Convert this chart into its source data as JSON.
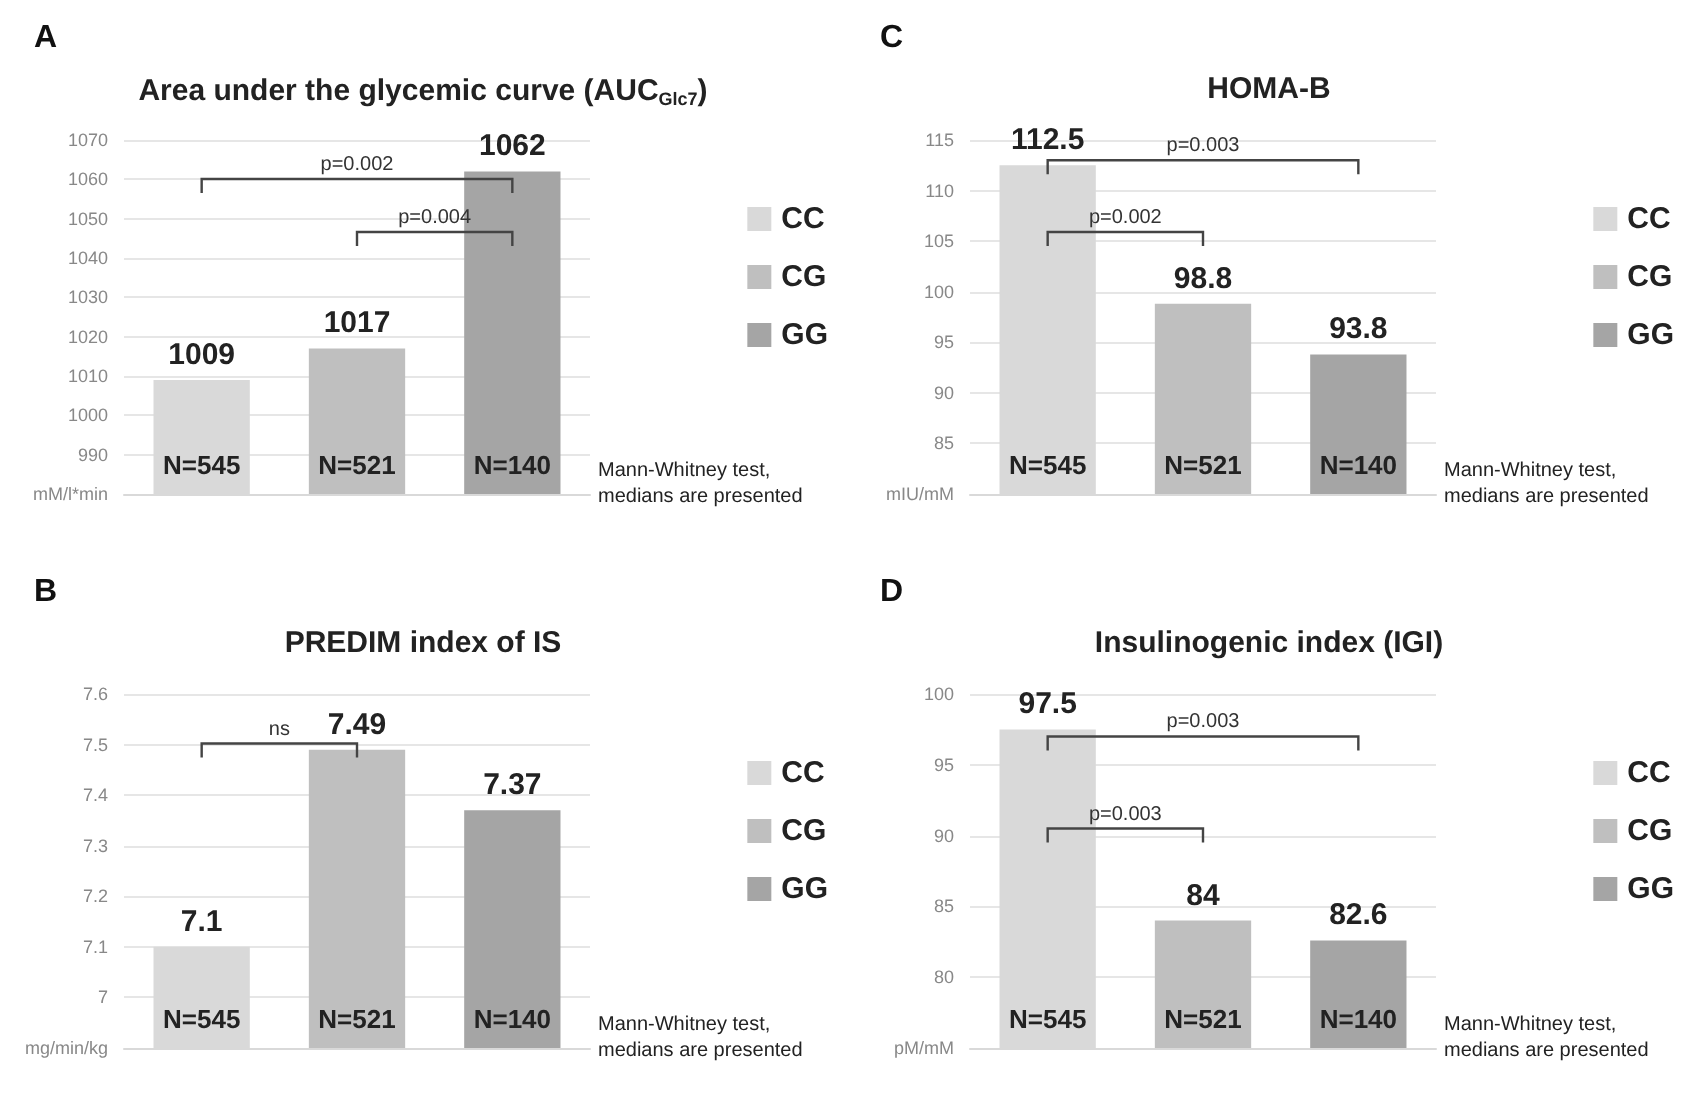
{
  "chart_data": [
    {
      "type": "bar",
      "subtitle": "A",
      "title": "Area under the glycemic curve (AUC$_{Glc7}$)",
      "categories": [
        null,
        null,
        null
      ],
      "series": [
        {
          "name": "CC",
          "color": "#d9d9d9",
          "values": [
            1009,
            null,
            null
          ]
        },
        {
          "name": "CG",
          "color": "#bfbfbf",
          "values": [
            null,
            1017,
            null
          ]
        },
        {
          "name": "GG",
          "color": "#a5a5a5",
          "values": [
            null,
            null,
            1062
          ]
        }
      ],
      "ylim": [
        980,
        1070
      ],
      "yticks": [
        {
          "value": 980,
          "label": "mM/l*min"
        },
        990,
        1000,
        1010,
        1020,
        1030,
        1040,
        1050,
        1060,
        1070
      ],
      "grid": "y",
      "legend": "right",
      "data_labels": true,
      "annotations": [
        "N=545",
        "N=521",
        "N=140",
        "p=0.002",
        "p=0.004",
        "Mann-Whitney test, medians are presented"
      ]
    },
    {
      "type": "bar",
      "subtitle": "C",
      "title": "HOMA-B",
      "categories": [
        null,
        null,
        null
      ],
      "series": [
        {
          "name": "CC",
          "color": "#d9d9d9",
          "values": [
            112.5,
            null,
            null
          ]
        },
        {
          "name": "CG",
          "color": "#bfbfbf",
          "values": [
            null,
            98.8,
            null
          ]
        },
        {
          "name": "GG",
          "color": "#a5a5a5",
          "values": [
            null,
            null,
            93.8
          ]
        }
      ],
      "ylim": [
        80,
        115
      ],
      "yticks": [
        {
          "value": 80,
          "label": "mIU/mM"
        },
        85,
        90,
        95,
        100,
        105,
        110,
        115
      ],
      "grid": "y",
      "legend": "right",
      "data_labels": true,
      "annotations": [
        "N=545",
        "N=521",
        "N=140",
        "p=0.003",
        "p=0.002",
        "Mann-Whitney test, medians are presented"
      ]
    },
    {
      "type": "bar",
      "subtitle": "B",
      "title": "PREDIM index of IS",
      "categories": [
        null,
        null,
        null
      ],
      "series": [
        {
          "name": "CC",
          "color": "#d9d9d9",
          "values": [
            7.1,
            null,
            null
          ]
        },
        {
          "name": "CG",
          "color": "#bfbfbf",
          "values": [
            null,
            7.49,
            null
          ]
        },
        {
          "name": "GG",
          "color": "#a5a5a5",
          "values": [
            null,
            null,
            7.37
          ]
        }
      ],
      "ylim": [
        6.9,
        7.6
      ],
      "yticks": [
        {
          "value": 6.9,
          "label": "mg/min/kg"
        },
        7,
        7.1,
        7.2,
        7.3,
        7.4,
        7.5,
        7.6
      ],
      "grid": "y",
      "legend": "right",
      "data_labels": true,
      "annotations": [
        "N=545",
        "N=521",
        "N=140",
        "ns",
        "Mann-Whitney test, medians are presented"
      ]
    },
    {
      "type": "bar",
      "subtitle": "D",
      "title": "Insulinogenic index (IGI)",
      "categories": [
        null,
        null,
        null
      ],
      "series": [
        {
          "name": "CC",
          "color": "#d9d9d9",
          "values": [
            97.5,
            null,
            null
          ]
        },
        {
          "name": "CG",
          "color": "#bfbfbf",
          "values": [
            null,
            84,
            null
          ]
        },
        {
          "name": "GG",
          "color": "#a5a5a5",
          "values": [
            null,
            null,
            82.6
          ]
        }
      ],
      "ylim": [
        75,
        100
      ],
      "yticks": [
        {
          "value": 75,
          "label": "pM/mM"
        },
        80,
        85,
        90,
        95,
        100
      ],
      "grid": "y",
      "legend": "right",
      "data_labels": true,
      "annotations": [
        "N=545",
        "N=521",
        "N=140",
        "p=0.003",
        "p=0.003",
        "Mann-Whitney test, medians are presented"
      ]
    }
  ]
}
